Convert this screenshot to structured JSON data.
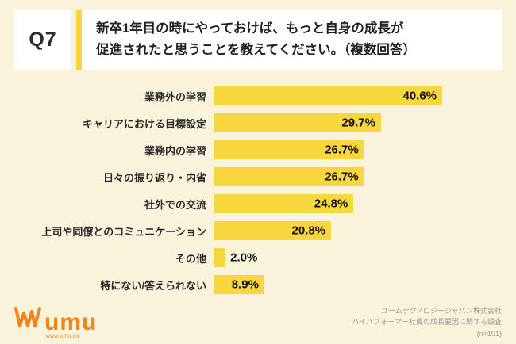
{
  "header": {
    "question_label": "Q7",
    "title": "新卒1年目の時にやっておけば、もっと自身の成長が\n促進されたと思うことを教えてください。（複数回答）"
  },
  "chart_data": {
    "type": "bar",
    "orientation": "horizontal",
    "title": "",
    "xlabel": "",
    "ylabel": "",
    "categories": [
      "業務外の学習",
      "キャリアにおける目標設定",
      "業務内の学習",
      "日々の振り返り・内省",
      "社外での交流",
      "上司や同僚とのコミュニケーション",
      "その他",
      "特にない/答えられない"
    ],
    "values": [
      40.6,
      29.7,
      26.7,
      26.7,
      24.8,
      20.8,
      2.0,
      8.9
    ],
    "labels": [
      "40.6%",
      "29.7%",
      "26.7%",
      "26.7%",
      "24.8%",
      "20.8%",
      "2.0%",
      "8.9%"
    ],
    "xlim": [
      0,
      43
    ],
    "grid": false,
    "legend": false,
    "bar_color": "#F8D63D"
  },
  "footer": {
    "logo_text": "umu",
    "logo_url": "www.umu.co",
    "source_line1": "ユームテクノロジージャパン株式会社",
    "source_line2": "ハイパフォーマー社員の成長要因に関する調査",
    "source_line3": "(n=101)"
  },
  "colors": {
    "background": "#FAF3DC",
    "bar_yellow": "#F8D63D",
    "logo_orange": "#F08519",
    "text_dark": "#2b2b2b",
    "text_gray": "#9b9b9b"
  }
}
